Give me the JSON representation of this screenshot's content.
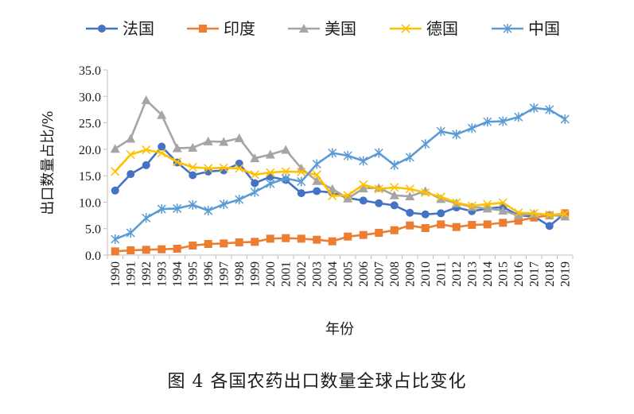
{
  "caption": "图 4    各国农药出口数量全球占比变化",
  "chart_data": {
    "type": "line",
    "title": "",
    "xlabel": "年份",
    "ylabel": "出口数量占比/%",
    "ylim": [
      0,
      35
    ],
    "yticks": [
      0,
      5,
      10,
      15,
      20,
      25,
      30,
      35
    ],
    "ytick_labels": [
      "0.0",
      "5.0",
      "10.0",
      "15.0",
      "20.0",
      "25.0",
      "30.0",
      "35.0"
    ],
    "grid": false,
    "legend": "top",
    "x": [
      "1990",
      "1991",
      "1992",
      "1993",
      "1994",
      "1995",
      "1996",
      "1997",
      "1998",
      "1999",
      "2000",
      "2001",
      "2002",
      "2003",
      "2004",
      "2005",
      "2006",
      "2007",
      "2008",
      "2009",
      "2010",
      "2011",
      "2012",
      "2013",
      "2014",
      "2015",
      "2016",
      "2017",
      "2018",
      "2019"
    ],
    "series": [
      {
        "name": "法国",
        "color": "#4472C4",
        "marker": "circle",
        "values": [
          12.2,
          15.3,
          17.0,
          20.5,
          17.5,
          15.1,
          15.8,
          16.0,
          17.3,
          13.6,
          14.8,
          14.2,
          11.7,
          12.1,
          11.8,
          10.8,
          10.3,
          9.8,
          9.4,
          8.0,
          7.7,
          7.9,
          9.0,
          8.3,
          8.8,
          9.1,
          7.5,
          7.3,
          5.5,
          7.9
        ]
      },
      {
        "name": "印度",
        "color": "#ED7D31",
        "marker": "square",
        "values": [
          0.7,
          0.9,
          1.0,
          1.1,
          1.2,
          1.8,
          2.1,
          2.2,
          2.4,
          2.5,
          3.1,
          3.2,
          3.1,
          2.9,
          2.6,
          3.5,
          3.8,
          4.2,
          4.7,
          5.6,
          5.1,
          5.8,
          5.3,
          5.7,
          5.8,
          6.1,
          6.5,
          7.1,
          7.5,
          7.9
        ]
      },
      {
        "name": "美国",
        "color": "#A5A5A5",
        "marker": "triangle",
        "values": [
          20.1,
          22.0,
          29.3,
          26.5,
          20.2,
          20.3,
          21.5,
          21.4,
          22.1,
          18.3,
          19.0,
          19.9,
          16.4,
          14.0,
          12.5,
          10.7,
          12.6,
          12.7,
          11.3,
          11.1,
          12.1,
          10.6,
          9.8,
          9.1,
          8.8,
          8.4,
          7.5,
          7.8,
          7.6,
          7.3
        ]
      },
      {
        "name": "德国",
        "color": "#FFC000",
        "marker": "x",
        "values": [
          15.8,
          19.0,
          19.9,
          19.3,
          17.6,
          16.6,
          16.4,
          16.5,
          16.4,
          15.2,
          15.6,
          15.8,
          15.7,
          15.2,
          11.2,
          11.3,
          13.3,
          12.5,
          12.8,
          12.5,
          11.8,
          11.0,
          9.9,
          9.3,
          9.6,
          9.9,
          8.0,
          7.9,
          7.6,
          7.8
        ]
      },
      {
        "name": "中国",
        "color": "#5B9BD5",
        "marker": "star",
        "values": [
          3.0,
          4.2,
          7.0,
          8.7,
          8.8,
          9.5,
          8.4,
          9.6,
          10.5,
          11.9,
          13.5,
          14.5,
          13.9,
          17.2,
          19.3,
          18.8,
          17.8,
          19.3,
          17.0,
          18.5,
          21.0,
          23.4,
          22.8,
          24.0,
          25.2,
          25.3,
          26.1,
          27.8,
          27.5,
          25.7
        ]
      }
    ]
  }
}
